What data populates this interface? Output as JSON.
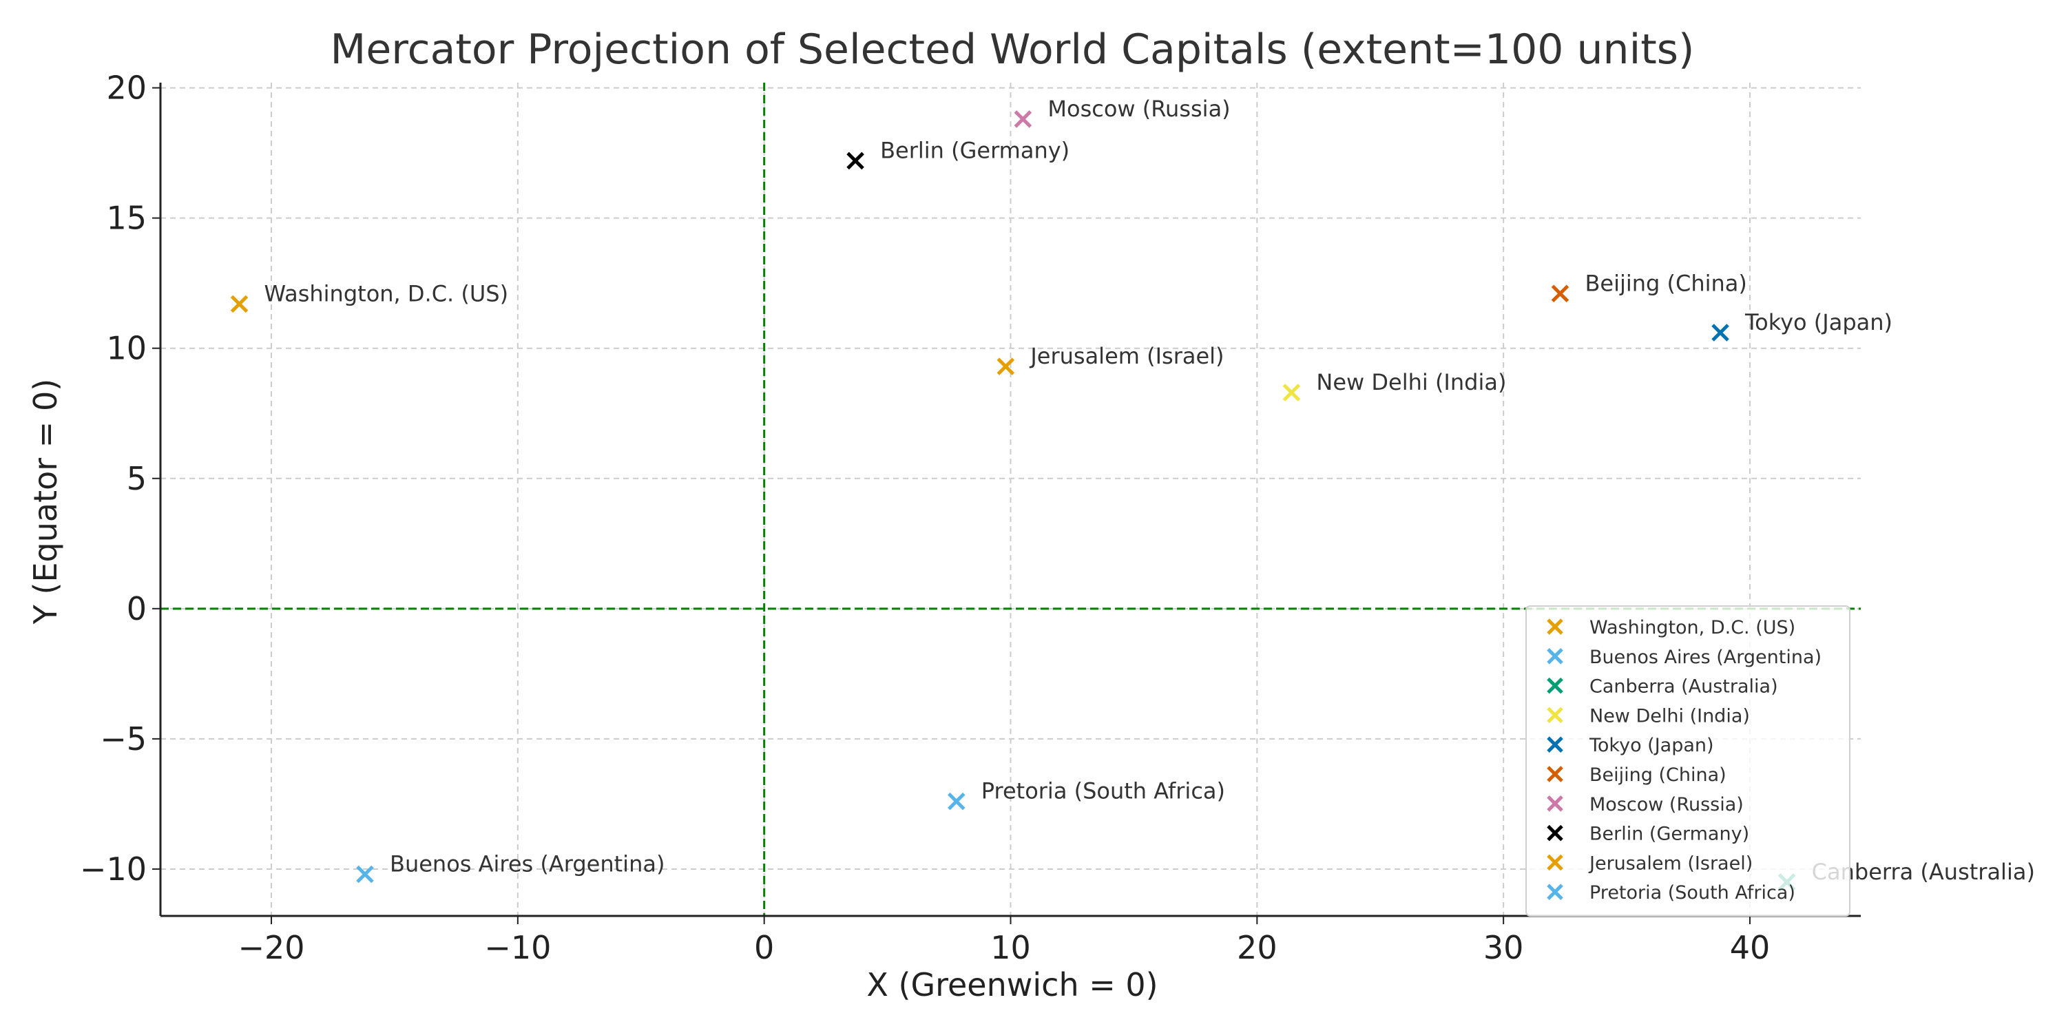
{
  "chart_data": {
    "type": "scatter",
    "title": "Mercator Projection of Selected World Capitals (extent=100 units)",
    "xlabel": "X (Greenwich = 0)",
    "ylabel": "Y (Equator = 0)",
    "xlim": [
      -24.5,
      44.5
    ],
    "ylim": [
      -11.8,
      20.2
    ],
    "xticks": [
      -20,
      -10,
      0,
      10,
      20,
      30,
      40
    ],
    "yticks": [
      -10,
      -5,
      0,
      5,
      10,
      15,
      20
    ],
    "xtick_labels": [
      "−20",
      "−10",
      "0",
      "10",
      "20",
      "30",
      "40"
    ],
    "ytick_labels": [
      "−10",
      "−5",
      "0",
      "5",
      "10",
      "15",
      "20"
    ],
    "grid": true,
    "reference_lines": [
      {
        "axis": "x",
        "value": 0,
        "color": "#008000",
        "style": "dashed"
      },
      {
        "axis": "y",
        "value": 0,
        "color": "#008000",
        "style": "dashed"
      }
    ],
    "legend_position": "lower-right",
    "marker": "x",
    "series": [
      {
        "name": "Washington, D.C. (US)",
        "x": -21.3,
        "y": 11.7,
        "color": "#E69F00"
      },
      {
        "name": "Buenos Aires (Argentina)",
        "x": -16.2,
        "y": -10.2,
        "color": "#56B4E9"
      },
      {
        "name": "Canberra (Australia)",
        "x": 41.5,
        "y": -10.5,
        "color": "#009E73"
      },
      {
        "name": "New Delhi (India)",
        "x": 21.4,
        "y": 8.3,
        "color": "#F0E442"
      },
      {
        "name": "Tokyo (Japan)",
        "x": 38.8,
        "y": 10.6,
        "color": "#0072B2"
      },
      {
        "name": "Beijing (China)",
        "x": 32.3,
        "y": 12.1,
        "color": "#D55E00"
      },
      {
        "name": "Moscow (Russia)",
        "x": 10.5,
        "y": 18.8,
        "color": "#CC79A7"
      },
      {
        "name": "Berlin (Germany)",
        "x": 3.7,
        "y": 17.2,
        "color": "#000000"
      },
      {
        "name": "Jerusalem (Israel)",
        "x": 9.8,
        "y": 9.3,
        "color": "#E69F00"
      },
      {
        "name": "Pretoria (South Africa)",
        "x": 7.8,
        "y": -7.4,
        "color": "#56B4E9"
      }
    ]
  }
}
